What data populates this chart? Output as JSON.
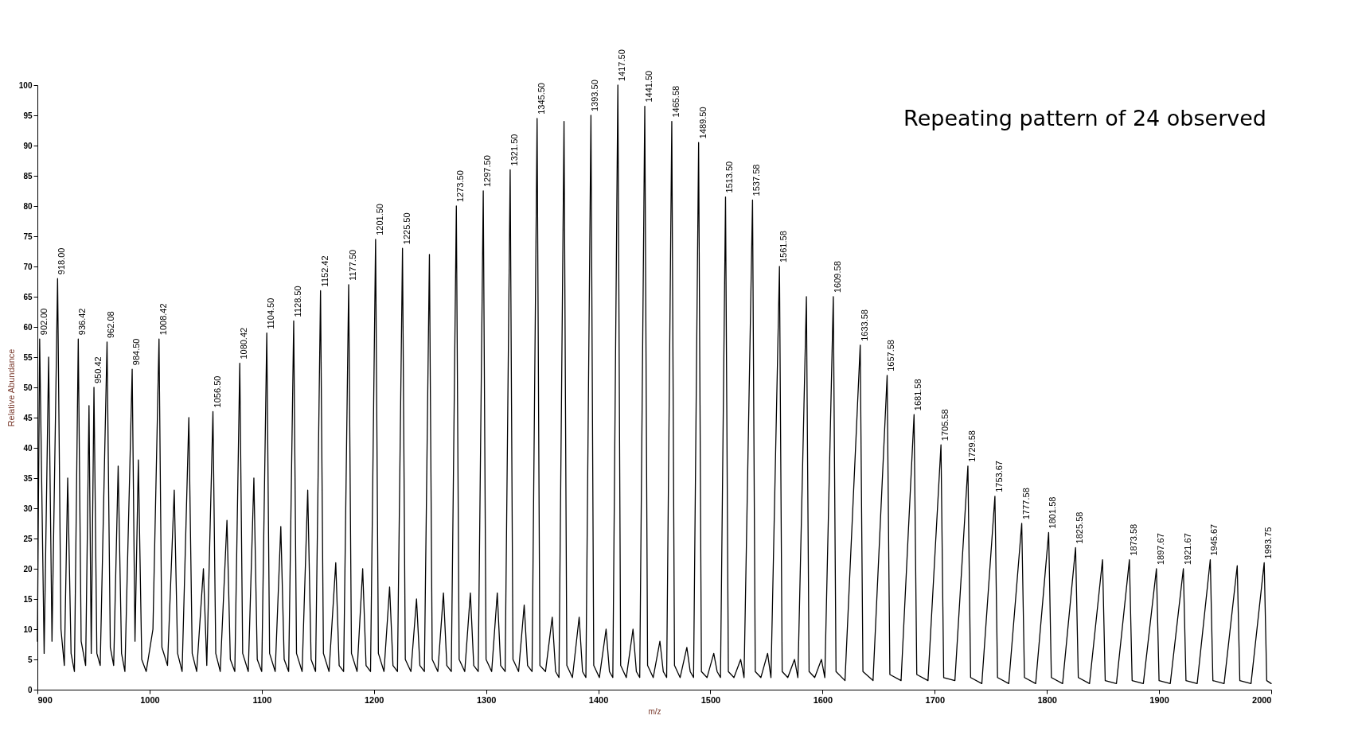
{
  "chart_data": {
    "type": "line",
    "xlabel": "m/z",
    "ylabel": "Relative Abundance",
    "xlim": [
      900,
      2000
    ],
    "xticks": [
      900,
      1000,
      1100,
      1200,
      1300,
      1400,
      1500,
      1600,
      1700,
      1800,
      1900,
      2000
    ],
    "ylim": [
      0,
      100
    ],
    "yticks": [
      0,
      5,
      10,
      15,
      20,
      25,
      30,
      35,
      40,
      45,
      50,
      55,
      60,
      65,
      70,
      75,
      80,
      85,
      90,
      95,
      100
    ],
    "series": [
      {
        "color": "#000000",
        "x": [
          900,
          902,
          906,
          910,
          913,
          918,
          921,
          924,
          927,
          930,
          933,
          936.42,
          939,
          943,
          946,
          948,
          950.42,
          953,
          956,
          962.08,
          965,
          968,
          972,
          975,
          978,
          984.5,
          987,
          990,
          993,
          997,
          1003,
          1008.42,
          1011,
          1016,
          1022,
          1025,
          1029,
          1035,
          1038,
          1042,
          1048,
          1051,
          1056.5,
          1059,
          1063,
          1069,
          1072,
          1076,
          1080.42,
          1083,
          1088,
          1093,
          1096,
          1100,
          1104.5,
          1107,
          1112,
          1117,
          1120,
          1124,
          1128.5,
          1131,
          1136,
          1141,
          1144,
          1148,
          1152.42,
          1155,
          1160,
          1166,
          1169,
          1173,
          1177.5,
          1180,
          1185,
          1190,
          1193,
          1197,
          1201.5,
          1204,
          1209,
          1214,
          1217,
          1221,
          1225.5,
          1228,
          1233,
          1238,
          1241,
          1245,
          1249.5,
          1252,
          1257,
          1262,
          1265,
          1269,
          1273.5,
          1276,
          1281,
          1286,
          1289,
          1293,
          1297.5,
          1300,
          1305,
          1310,
          1313,
          1317,
          1321.5,
          1324,
          1329,
          1334,
          1337,
          1341,
          1345.5,
          1348,
          1353,
          1359,
          1362,
          1365,
          1369.5,
          1372,
          1377,
          1383,
          1386,
          1389,
          1393.5,
          1396,
          1401,
          1407,
          1410,
          1413,
          1417.5,
          1420,
          1425,
          1431,
          1434,
          1437,
          1441.5,
          1444,
          1449,
          1455,
          1458,
          1461,
          1465.58,
          1468,
          1473,
          1479,
          1482,
          1485,
          1489.5,
          1492,
          1497,
          1503,
          1506,
          1509,
          1513.5,
          1516,
          1521,
          1527,
          1530,
          1537.58,
          1540,
          1545,
          1551,
          1554,
          1561.58,
          1564,
          1569,
          1575,
          1578,
          1585.6,
          1588,
          1593,
          1599,
          1602,
          1609.58,
          1612,
          1620,
          1633.58,
          1636,
          1645,
          1657.58,
          1660,
          1670,
          1681.58,
          1684,
          1694,
          1705.58,
          1708,
          1718,
          1729.58,
          1732,
          1742,
          1753.67,
          1756,
          1766,
          1777.58,
          1780,
          1790,
          1801.58,
          1804,
          1814,
          1825.58,
          1828,
          1838,
          1849.6,
          1852,
          1862,
          1873.58,
          1876,
          1886,
          1897.67,
          1900,
          1910,
          1921.67,
          1924,
          1934,
          1945.67,
          1948,
          1958,
          1969.7,
          1972,
          1982,
          1993.75,
          1996,
          2000
        ],
        "values": [
          8,
          58,
          6,
          55,
          8,
          68,
          10,
          4,
          35,
          6,
          3,
          58,
          8,
          4,
          47,
          6,
          50,
          6,
          4,
          57.5,
          7,
          4,
          37,
          6,
          3,
          53,
          8,
          38,
          5,
          3,
          10,
          58,
          7,
          4,
          33,
          6,
          3,
          45,
          6,
          3,
          20,
          4,
          46,
          6,
          3,
          28,
          5,
          3,
          54,
          6,
          3,
          35,
          5,
          3,
          59,
          6,
          3,
          27,
          5,
          3,
          61,
          6,
          3,
          33,
          5,
          3,
          66,
          6,
          3,
          21,
          4,
          3,
          67,
          6,
          3,
          20,
          4,
          3,
          74.5,
          6,
          3,
          17,
          4,
          3,
          73,
          5,
          3,
          15,
          4,
          3,
          72,
          5,
          3,
          16,
          4,
          3,
          80,
          5,
          3,
          16,
          4,
          3,
          82.5,
          5,
          3,
          16,
          4,
          3,
          86,
          5,
          3,
          14,
          4,
          3,
          94.5,
          4,
          3,
          12,
          3,
          2,
          94,
          4,
          2,
          12,
          3,
          2,
          95,
          4,
          2,
          10,
          3,
          2,
          100,
          4,
          2,
          10,
          3,
          2,
          96.5,
          4,
          2,
          8,
          3,
          2,
          94,
          4,
          2,
          7,
          3,
          2,
          90.5,
          3,
          2,
          6,
          3,
          2,
          81.5,
          3,
          2,
          5,
          2,
          81,
          3,
          2,
          6,
          2,
          70,
          3,
          2,
          5,
          2,
          65,
          3,
          2,
          5,
          2,
          65,
          3,
          1.5,
          57,
          3,
          1.5,
          52,
          2.5,
          1.5,
          45.5,
          2.5,
          1.5,
          40.5,
          2,
          1.5,
          37,
          2,
          1,
          32,
          2,
          1,
          27.5,
          2,
          1,
          26,
          2,
          1,
          23.5,
          2,
          1,
          21.5,
          1.5,
          1,
          21.5,
          1.5,
          1,
          20,
          1.5,
          1,
          20,
          1.5,
          1,
          21.5,
          1.5,
          1,
          20.5,
          1.5,
          1,
          21,
          1.5,
          1
        ]
      }
    ],
    "annotations": [
      {
        "text": "902.00",
        "x": 902,
        "y": 58
      },
      {
        "text": "918.00",
        "x": 918,
        "y": 68
      },
      {
        "text": "936.42",
        "x": 936.42,
        "y": 58
      },
      {
        "text": "950.42",
        "x": 950.42,
        "y": 50
      },
      {
        "text": "962.08",
        "x": 962.08,
        "y": 57.5
      },
      {
        "text": "984.50",
        "x": 984.5,
        "y": 53
      },
      {
        "text": "1008.42",
        "x": 1008.42,
        "y": 58
      },
      {
        "text": "1056.50",
        "x": 1056.5,
        "y": 46
      },
      {
        "text": "1080.42",
        "x": 1080.42,
        "y": 54
      },
      {
        "text": "1104.50",
        "x": 1104.5,
        "y": 59
      },
      {
        "text": "1128.50",
        "x": 1128.5,
        "y": 61
      },
      {
        "text": "1152.42",
        "x": 1152.42,
        "y": 66
      },
      {
        "text": "1177.50",
        "x": 1177.5,
        "y": 67
      },
      {
        "text": "1201.50",
        "x": 1201.5,
        "y": 74.5
      },
      {
        "text": "1225.50",
        "x": 1225.5,
        "y": 73
      },
      {
        "text": "1273.50",
        "x": 1273.5,
        "y": 80
      },
      {
        "text": "1297.50",
        "x": 1297.5,
        "y": 82.5
      },
      {
        "text": "1321.50",
        "x": 1321.5,
        "y": 86
      },
      {
        "text": "1345.50",
        "x": 1345.5,
        "y": 94.5
      },
      {
        "text": "1393.50",
        "x": 1393.5,
        "y": 95
      },
      {
        "text": "1417.50",
        "x": 1417.5,
        "y": 100
      },
      {
        "text": "1441.50",
        "x": 1441.5,
        "y": 96.5
      },
      {
        "text": "1465.58",
        "x": 1465.58,
        "y": 94
      },
      {
        "text": "1489.50",
        "x": 1489.5,
        "y": 90.5
      },
      {
        "text": "1513.50",
        "x": 1513.5,
        "y": 81.5
      },
      {
        "text": "1537.58",
        "x": 1537.58,
        "y": 81
      },
      {
        "text": "1561.58",
        "x": 1561.58,
        "y": 70
      },
      {
        "text": "1609.58",
        "x": 1609.58,
        "y": 65
      },
      {
        "text": "1633.58",
        "x": 1633.58,
        "y": 57
      },
      {
        "text": "1657.58",
        "x": 1657.58,
        "y": 52
      },
      {
        "text": "1681.58",
        "x": 1681.58,
        "y": 45.5
      },
      {
        "text": "1705.58",
        "x": 1705.58,
        "y": 40.5
      },
      {
        "text": "1729.58",
        "x": 1729.58,
        "y": 37
      },
      {
        "text": "1753.67",
        "x": 1753.67,
        "y": 32
      },
      {
        "text": "1777.58",
        "x": 1777.58,
        "y": 27.5
      },
      {
        "text": "1801.58",
        "x": 1801.58,
        "y": 26
      },
      {
        "text": "1825.58",
        "x": 1825.58,
        "y": 23.5
      },
      {
        "text": "1873.58",
        "x": 1873.58,
        "y": 21.5
      },
      {
        "text": "1897.67",
        "x": 1897.67,
        "y": 20
      },
      {
        "text": "1921.67",
        "x": 1921.67,
        "y": 20
      },
      {
        "text": "1945.67",
        "x": 1945.67,
        "y": 21.5
      },
      {
        "text": "1993.75",
        "x": 1993.75,
        "y": 21
      },
      "Repeating pattern of 24 observed"
    ]
  }
}
